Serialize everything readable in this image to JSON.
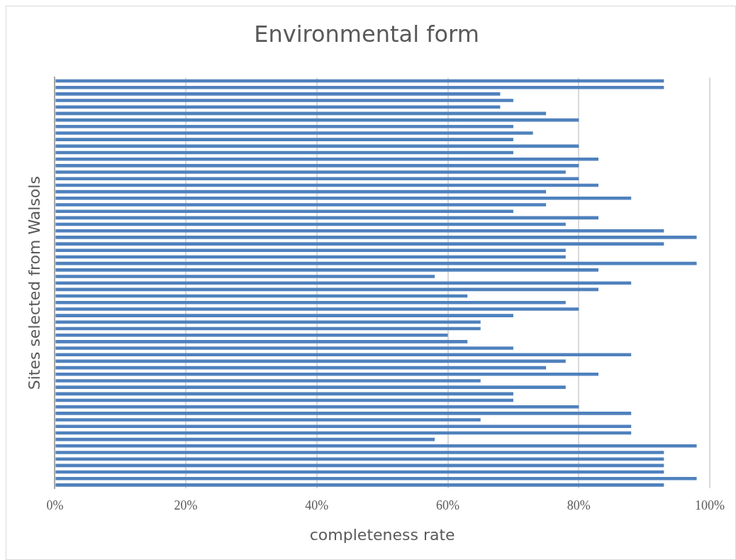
{
  "chart_data": {
    "type": "bar",
    "orientation": "horizontal",
    "title": "Environmental form",
    "xlabel": "completeness rate",
    "ylabel": "Sites selected from Walsols",
    "categories": [
      null,
      null,
      null,
      null,
      null,
      null,
      null,
      null,
      null,
      null,
      null,
      null,
      null,
      null,
      null,
      null,
      null,
      null,
      null,
      null,
      null,
      null,
      null,
      null,
      null,
      null,
      null,
      null,
      null,
      null,
      null,
      null,
      null,
      null,
      null,
      null,
      null,
      null,
      null,
      null,
      null,
      null,
      null,
      null,
      null,
      null,
      null,
      null,
      null,
      null,
      null,
      null,
      null,
      null,
      null,
      null,
      null,
      null,
      null,
      null,
      null,
      null,
      null
    ],
    "values": [
      93,
      93,
      68,
      70,
      68,
      75,
      80,
      70,
      73,
      70,
      80,
      70,
      83,
      80,
      78,
      80,
      83,
      75,
      88,
      75,
      70,
      83,
      78,
      93,
      98,
      93,
      78,
      78,
      98,
      83,
      58,
      88,
      83,
      63,
      78,
      80,
      70,
      65,
      65,
      60,
      63,
      70,
      88,
      78,
      75,
      83,
      65,
      78,
      70,
      70,
      80,
      88,
      65,
      88,
      88,
      58,
      98,
      93,
      93,
      93,
      93,
      98,
      93
    ],
    "color": "#4f81bd",
    "xlim": [
      0,
      100
    ],
    "xticks": [
      {
        "value": 0,
        "label": "0%"
      },
      {
        "value": 20,
        "label": "20%"
      },
      {
        "value": 40,
        "label": "40%"
      },
      {
        "value": 60,
        "label": "60%"
      },
      {
        "value": 80,
        "label": "80%"
      },
      {
        "value": 100,
        "label": "100%"
      }
    ],
    "grid": "x",
    "tick_labels": "x"
  }
}
